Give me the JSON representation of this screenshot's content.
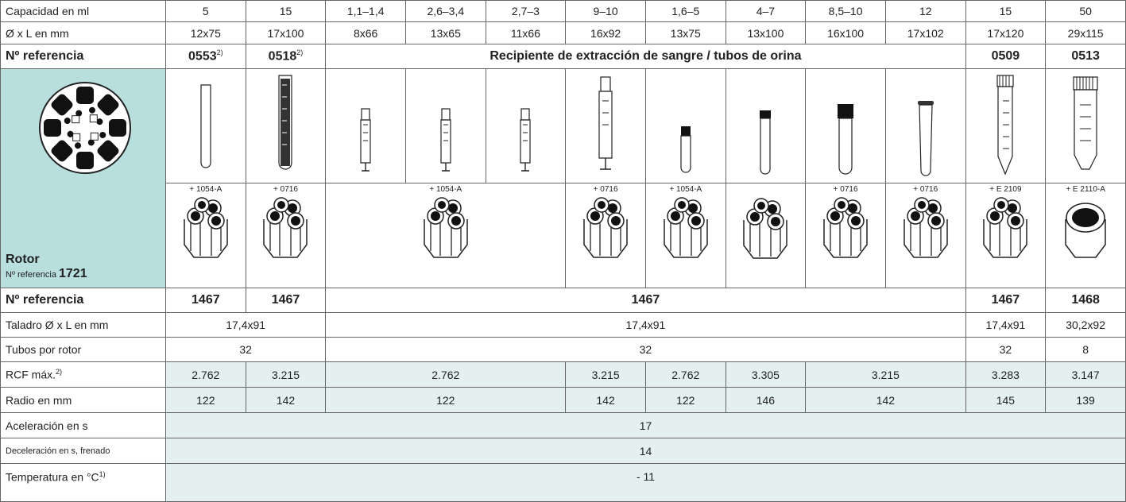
{
  "rows": {
    "capacity": {
      "label": "Capacidad en ml",
      "values": [
        "5",
        "15",
        "1,1–1,4",
        "2,6–3,4",
        "2,7–3",
        "9–10",
        "1,6–5",
        "4–7",
        "8,5–10",
        "12",
        "15",
        "50"
      ]
    },
    "size": {
      "label": "Ø x L en mm",
      "values": [
        "12x75",
        "17x100",
        "8x66",
        "13x65",
        "11x66",
        "16x92",
        "13x75",
        "13x100",
        "16x100",
        "17x102",
        "17x120",
        "29x115"
      ]
    },
    "tube_reference": {
      "label": "Nº referencia",
      "cells": [
        {
          "text": "0553",
          "note": "2)"
        },
        {
          "text": "0518",
          "note": "2)"
        },
        {
          "text": "Recipiente de extracción de sangre / tubos de orina"
        },
        {
          "text": "0509"
        },
        {
          "text": "0513"
        }
      ]
    },
    "rotor": {
      "title": "Rotor",
      "reference_label": "Nº referencia",
      "reference": "1721"
    },
    "adapters": [
      "+ 1054-A",
      "+ 0716",
      "+ 1054-A",
      "+ 0716",
      "+ 1054-A",
      "+ 0716",
      "+ 0716",
      "+ E 2109",
      "+ E 2110-A"
    ],
    "bucket_reference": {
      "label": "Nº referencia",
      "values": [
        "1467",
        "1467",
        "1467",
        "1467",
        "1468"
      ]
    },
    "bore": {
      "label": "Taladro Ø x L en mm",
      "values": [
        "17,4x91",
        "17,4x91",
        "17,4x91",
        "30,2x92"
      ]
    },
    "tubes_per_rotor": {
      "label": "Tubos por rotor",
      "values": [
        "32",
        "32",
        "32",
        "8"
      ]
    },
    "rcf": {
      "label": "RCF máx.",
      "note": "2)",
      "values": [
        "2.762",
        "3.215",
        "2.762",
        "3.215",
        "2.762",
        "3.305",
        "3.215",
        "3.283",
        "3.147"
      ]
    },
    "radius": {
      "label": "Radio en mm",
      "values": [
        "122",
        "142",
        "122",
        "142",
        "122",
        "146",
        "142",
        "145",
        "139"
      ]
    },
    "acceleration": {
      "label": "Aceleración en s",
      "values": [
        "17"
      ]
    },
    "deceleration": {
      "label": "Deceleración en s, frenado",
      "values": [
        "14"
      ]
    },
    "temperature": {
      "label": "Temperatura en °C",
      "note": "1)",
      "values": [
        "- 11"
      ]
    }
  }
}
